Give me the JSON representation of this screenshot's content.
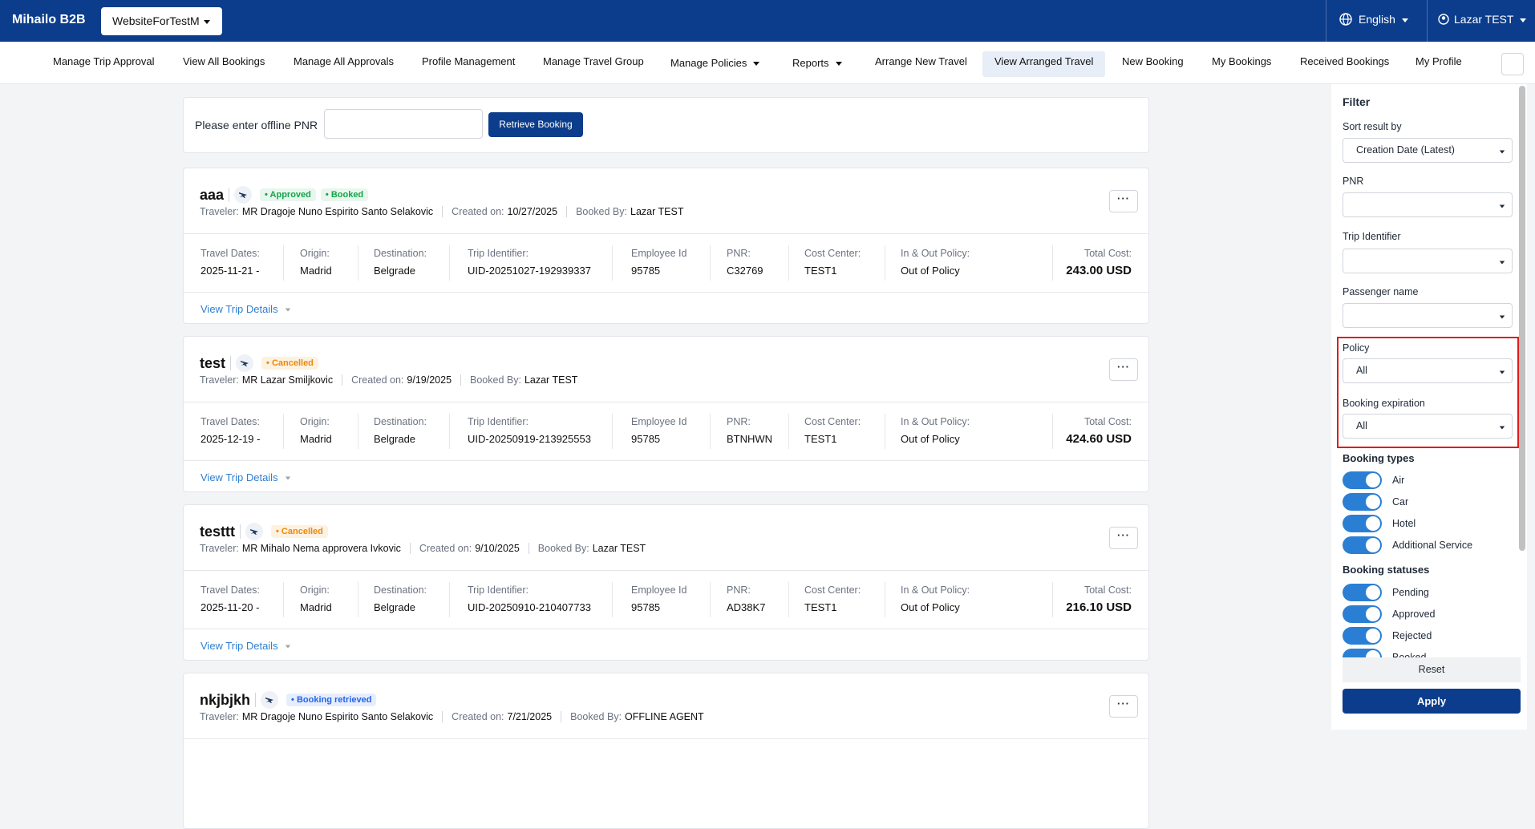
{
  "header": {
    "brand": "Mihailo B2B",
    "site": "WebsiteForTestM",
    "language": "English",
    "user": "Lazar TEST"
  },
  "nav": [
    "Manage Trip Approval",
    "View All Bookings",
    "Manage All Approvals",
    "Profile Management",
    "Manage Travel Group",
    "Manage Policies",
    "Reports",
    "Arrange New Travel",
    "View Arranged Travel",
    "New Booking",
    "My Bookings",
    "Received Bookings",
    "My Profile"
  ],
  "pnr_search": {
    "label": "Please enter offline PNR",
    "button": "Retrieve Booking"
  },
  "labels": {
    "traveler": "Traveler:",
    "created": "Created on:",
    "booked_by": "Booked By:",
    "fields": [
      "Travel Dates:",
      "Origin:",
      "Destination:",
      "Trip Identifier:",
      "Employee Id",
      "PNR:",
      "Cost Center:",
      "In & Out Policy:"
    ],
    "total": "Total Cost:",
    "details": "View Trip Details"
  },
  "bookings": [
    {
      "name": "aaa",
      "statuses": [
        {
          "text": "Approved",
          "color": "#16a34a",
          "bg": "#e8f7ee"
        },
        {
          "text": "Booked",
          "color": "#16a34a",
          "bg": "#e8f7ee"
        }
      ],
      "traveler": "MR Dragoje Nuno Espirito Santo Selakovic",
      "created": "10/27/2025",
      "booked_by": "Lazar TEST",
      "fields": [
        "2025-11-21 -",
        "Madrid",
        "Belgrade",
        "UID-20251027-192939337",
        "95785",
        "C32769",
        "TEST1",
        "Out of Policy"
      ],
      "total": "243.00 USD"
    },
    {
      "name": "test",
      "statuses": [
        {
          "text": "Cancelled",
          "color": "#ea8a0c",
          "bg": "#fdf1e0"
        }
      ],
      "traveler": "MR Lazar Smiljkovic",
      "created": "9/19/2025",
      "booked_by": "Lazar TEST",
      "fields": [
        "2025-12-19 -",
        "Madrid",
        "Belgrade",
        "UID-20250919-213925553",
        "95785",
        "BTNHWN",
        "TEST1",
        "Out of Policy"
      ],
      "total": "424.60 USD"
    },
    {
      "name": "testtt",
      "statuses": [
        {
          "text": "Cancelled",
          "color": "#ea8a0c",
          "bg": "#fdf1e0"
        }
      ],
      "traveler": "MR Mihalo Nema approvera Ivkovic",
      "created": "9/10/2025",
      "booked_by": "Lazar TEST",
      "fields": [
        "2025-11-20 -",
        "Madrid",
        "Belgrade",
        "UID-20250910-210407733",
        "95785",
        "AD38K7",
        "TEST1",
        "Out of Policy"
      ],
      "total": "216.10 USD"
    },
    {
      "name": "nkjbjkh",
      "statuses": [
        {
          "text": "Booking retrieved",
          "color": "#2563eb",
          "bg": "#e6eefc"
        }
      ],
      "traveler": "MR Dragoje Nuno Espirito Santo Selakovic",
      "created": "7/21/2025",
      "booked_by": "OFFLINE AGENT"
    }
  ],
  "filter": {
    "title": "Filter",
    "sort_label": "Sort result by",
    "sort_value": "Creation Date (Latest)",
    "pnr": "PNR",
    "trip_identifier": "Trip Identifier",
    "passenger": "Passenger name",
    "policy_label": "Policy",
    "policy_value": "All",
    "expiration_label": "Booking expiration",
    "expiration_value": "All",
    "types_title": "Booking types",
    "types": [
      "Air",
      "Car",
      "Hotel",
      "Additional Service"
    ],
    "statuses_title": "Booking statuses",
    "statuses": [
      "Pending",
      "Approved",
      "Rejected",
      "Booked"
    ],
    "reset": "Reset",
    "apply": "Apply"
  }
}
